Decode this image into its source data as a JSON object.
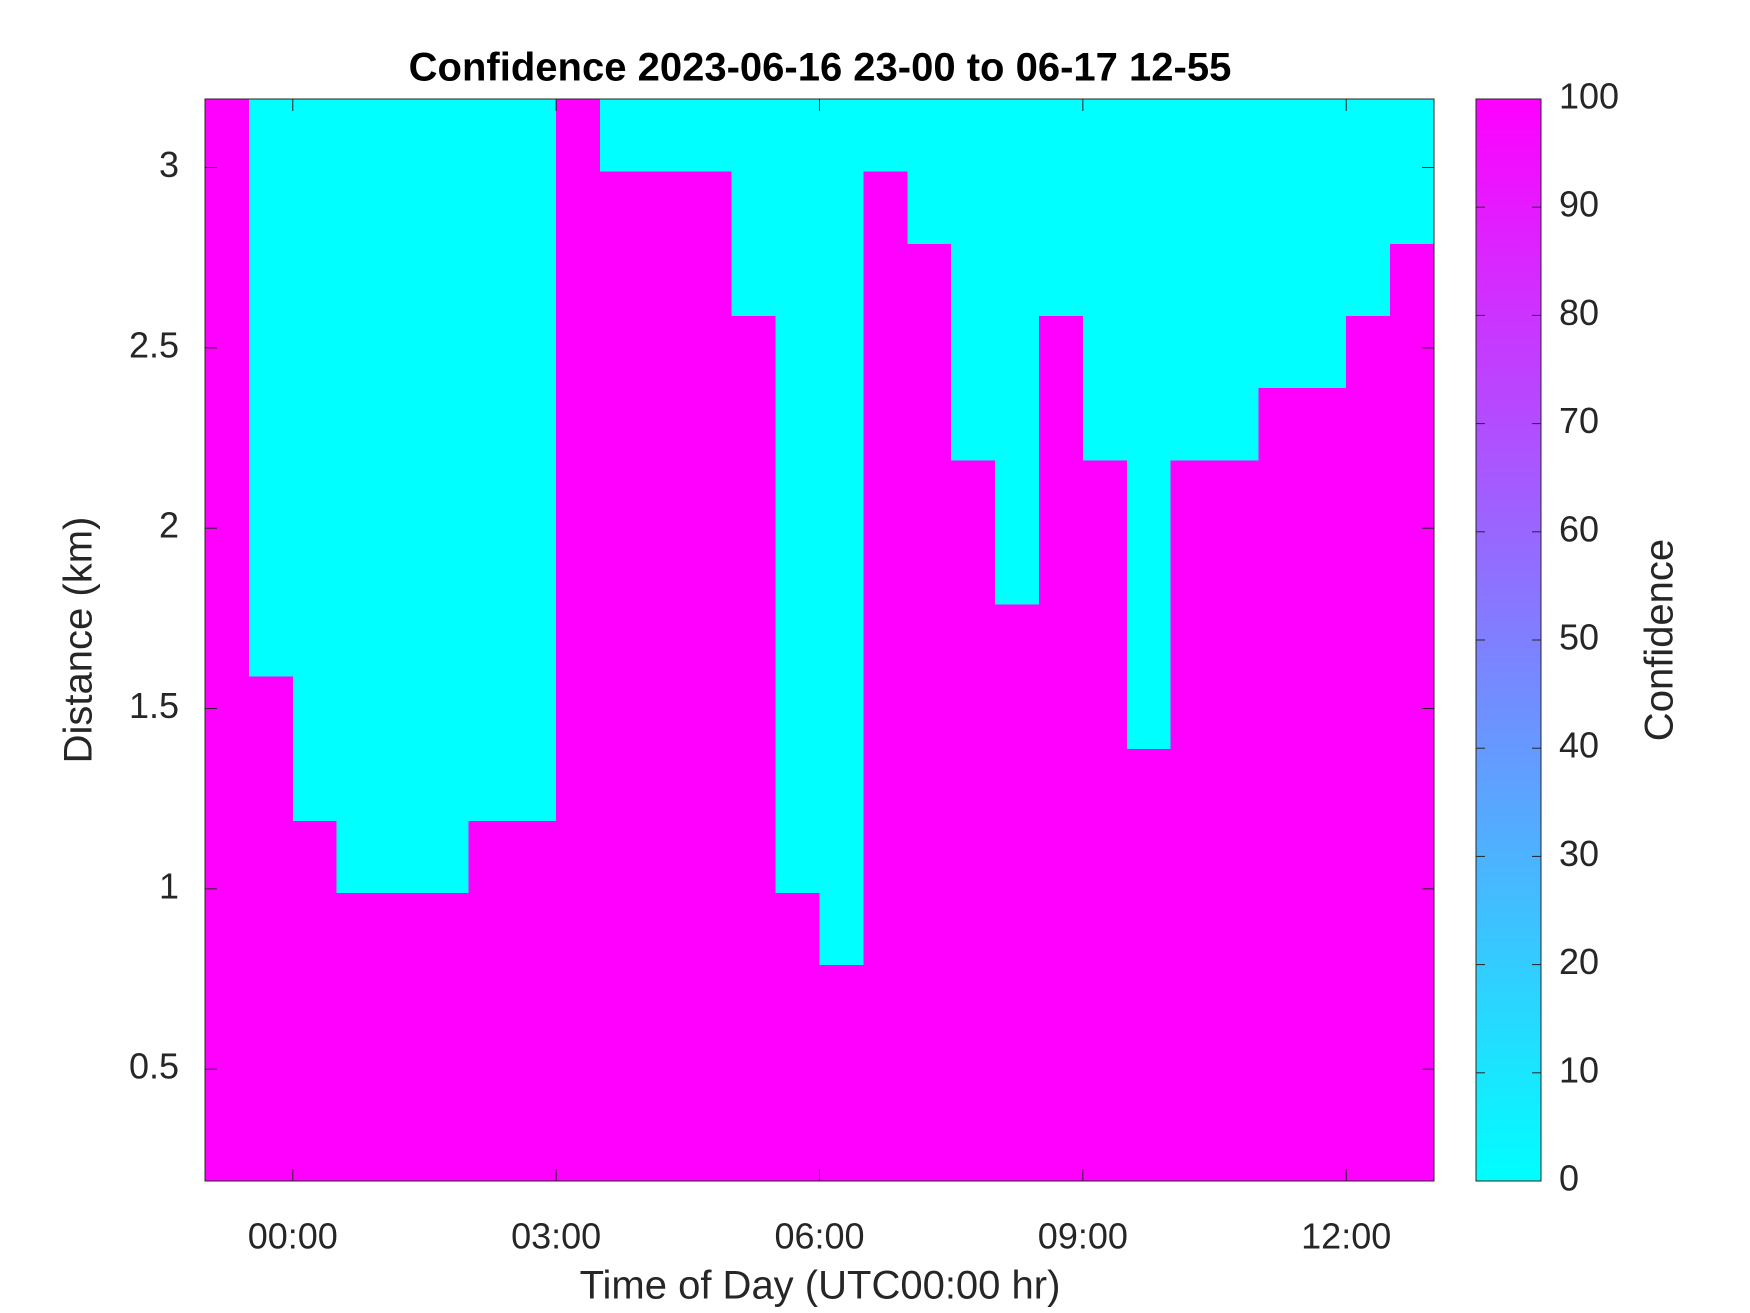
{
  "chart_data": {
    "type": "heatmap",
    "title": "Confidence 2023-06-16 23-00 to 06-17 12-55",
    "x_label": "Time of Day (UTC00:00 hr)",
    "y_label": "Distance (km)",
    "colorbar_label": "Confidence",
    "colormap": [
      "#00ffff",
      "#ff00ff"
    ],
    "x": [
      -0.75,
      -0.25,
      0.25,
      0.75,
      1.25,
      1.75,
      2.25,
      2.75,
      3.25,
      3.75,
      4.25,
      4.75,
      5.25,
      5.75,
      6.25,
      6.75,
      7.25,
      7.75,
      8.25,
      8.75,
      9.25,
      9.75,
      10.25,
      10.75,
      11.25,
      11.75,
      12.25,
      12.75
    ],
    "y": [
      0.29,
      0.49,
      0.69,
      0.89,
      1.09,
      1.29,
      1.49,
      1.69,
      1.89,
      2.09,
      2.29,
      2.49,
      2.69,
      2.89,
      3.09
    ],
    "z": [
      [
        100,
        100,
        100,
        100,
        100,
        100,
        100,
        100,
        100,
        100,
        100,
        100,
        100,
        100,
        100,
        100,
        100,
        100,
        100,
        100,
        100,
        100,
        100,
        100,
        100,
        100,
        100,
        100
      ],
      [
        100,
        100,
        100,
        100,
        100,
        100,
        100,
        100,
        100,
        100,
        100,
        100,
        100,
        100,
        100,
        100,
        100,
        100,
        100,
        100,
        100,
        100,
        100,
        100,
        100,
        100,
        100,
        100
      ],
      [
        100,
        100,
        100,
        100,
        100,
        100,
        100,
        100,
        100,
        100,
        100,
        100,
        100,
        100,
        100,
        100,
        100,
        100,
        100,
        100,
        100,
        100,
        100,
        100,
        100,
        100,
        100,
        100
      ],
      [
        100,
        100,
        100,
        100,
        100,
        100,
        100,
        100,
        100,
        100,
        100,
        100,
        100,
        100,
        0,
        100,
        100,
        100,
        100,
        100,
        100,
        100,
        100,
        100,
        100,
        100,
        100,
        100
      ],
      [
        100,
        100,
        100,
        0,
        0,
        0,
        100,
        100,
        100,
        100,
        100,
        100,
        100,
        0,
        0,
        100,
        100,
        100,
        100,
        100,
        100,
        100,
        100,
        100,
        100,
        100,
        100,
        100
      ],
      [
        100,
        100,
        0,
        0,
        0,
        0,
        0,
        0,
        100,
        100,
        100,
        100,
        100,
        0,
        0,
        100,
        100,
        100,
        100,
        100,
        100,
        100,
        100,
        100,
        100,
        100,
        100,
        100
      ],
      [
        100,
        100,
        0,
        0,
        0,
        0,
        0,
        0,
        100,
        100,
        100,
        100,
        100,
        0,
        0,
        100,
        100,
        100,
        100,
        100,
        100,
        0,
        100,
        100,
        100,
        100,
        100,
        100
      ],
      [
        100,
        0,
        0,
        0,
        0,
        0,
        0,
        0,
        100,
        100,
        100,
        100,
        100,
        0,
        0,
        100,
        100,
        100,
        100,
        100,
        100,
        0,
        100,
        100,
        100,
        100,
        100,
        100
      ],
      [
        100,
        0,
        0,
        0,
        0,
        0,
        0,
        0,
        100,
        100,
        100,
        100,
        100,
        0,
        0,
        100,
        100,
        100,
        0,
        100,
        100,
        0,
        100,
        100,
        100,
        100,
        100,
        100
      ],
      [
        100,
        0,
        0,
        0,
        0,
        0,
        0,
        0,
        100,
        100,
        100,
        100,
        100,
        0,
        0,
        100,
        100,
        100,
        0,
        100,
        100,
        0,
        100,
        100,
        100,
        100,
        100,
        100
      ],
      [
        100,
        0,
        0,
        0,
        0,
        0,
        0,
        0,
        100,
        100,
        100,
        100,
        100,
        0,
        0,
        100,
        100,
        0,
        0,
        100,
        0,
        0,
        0,
        0,
        100,
        100,
        100,
        100
      ],
      [
        100,
        0,
        0,
        0,
        0,
        0,
        0,
        0,
        100,
        100,
        100,
        100,
        100,
        0,
        0,
        100,
        100,
        0,
        0,
        100,
        0,
        0,
        0,
        0,
        0,
        0,
        100,
        100
      ],
      [
        100,
        0,
        0,
        0,
        0,
        0,
        0,
        0,
        100,
        100,
        100,
        100,
        0,
        0,
        0,
        100,
        100,
        0,
        0,
        0,
        0,
        0,
        0,
        0,
        0,
        0,
        0,
        100
      ],
      [
        100,
        0,
        0,
        0,
        0,
        0,
        0,
        0,
        100,
        100,
        100,
        100,
        0,
        0,
        0,
        100,
        0,
        0,
        0,
        0,
        0,
        0,
        0,
        0,
        0,
        0,
        0,
        0
      ],
      [
        100,
        0,
        0,
        0,
        0,
        0,
        0,
        0,
        100,
        0,
        0,
        0,
        0,
        0,
        0,
        0,
        0,
        0,
        0,
        0,
        0,
        0,
        0,
        0,
        0,
        0,
        0,
        0
      ]
    ],
    "xlim": [
      -1,
      13
    ],
    "ylim": [
      0.19,
      3.19
    ],
    "xticks": [
      {
        "value": 0,
        "label": "00:00"
      },
      {
        "value": 3,
        "label": "03:00"
      },
      {
        "value": 6,
        "label": "06:00"
      },
      {
        "value": 9,
        "label": "09:00"
      },
      {
        "value": 12,
        "label": "12:00"
      }
    ],
    "yticks": [
      0.5,
      1,
      1.5,
      2,
      2.5,
      3
    ],
    "clim": [
      0,
      100
    ],
    "cticks": [
      0,
      10,
      20,
      30,
      40,
      50,
      60,
      70,
      80,
      90,
      100
    ]
  }
}
